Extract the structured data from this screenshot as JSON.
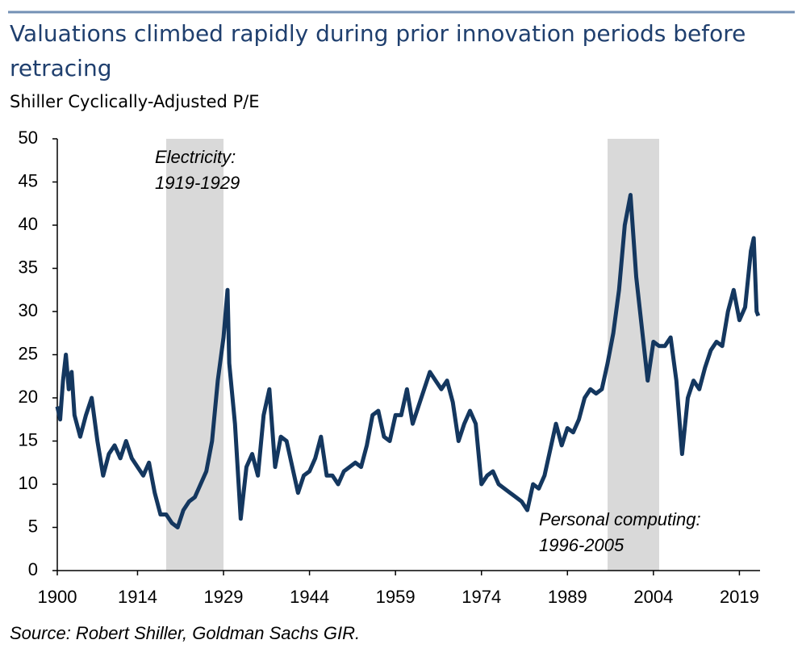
{
  "chart_data": {
    "type": "line",
    "title_lines": [
      "Valuations climbed rapidly during prior innovation periods before",
      "retracing"
    ],
    "subtitle": "Shiller Cyclically-Adjusted P/E",
    "source": "Source: Robert Shiller, Goldman Sachs GIR.",
    "shaded_periods": [
      {
        "label_lines": [
          "Electricity:",
          "1919-1929"
        ],
        "start": 1919,
        "end": 1929
      },
      {
        "label_lines": [
          "Personal computing:",
          "1996-2005"
        ],
        "start": 1996,
        "end": 2005
      }
    ],
    "x": [
      1900,
      1900.5,
      1901,
      1901.5,
      1902,
      1902.5,
      1903,
      1904,
      1905,
      1906,
      1907,
      1908,
      1909,
      1910,
      1911,
      1912,
      1913,
      1914,
      1915,
      1916,
      1917,
      1918,
      1919,
      1920,
      1921,
      1922,
      1923,
      1924,
      1925,
      1926,
      1927,
      1928,
      1929,
      1929.7,
      1930,
      1931,
      1932,
      1933,
      1934,
      1935,
      1936,
      1937,
      1938,
      1939,
      1940,
      1941,
      1942,
      1943,
      1944,
      1945,
      1946,
      1947,
      1948,
      1949,
      1950,
      1951,
      1952,
      1953,
      1954,
      1955,
      1956,
      1957,
      1958,
      1959,
      1960,
      1961,
      1962,
      1963,
      1964,
      1965,
      1966,
      1967,
      1968,
      1969,
      1970,
      1971,
      1972,
      1973,
      1974,
      1975,
      1976,
      1977,
      1978,
      1979,
      1980,
      1981,
      1982,
      1983,
      1984,
      1985,
      1986,
      1987,
      1988,
      1989,
      1990,
      1991,
      1992,
      1993,
      1994,
      1995,
      1996,
      1997,
      1998,
      1999,
      2000,
      2001,
      2002,
      2003,
      2004,
      2005,
      2006,
      2007,
      2008,
      2009,
      2010,
      2011,
      2012,
      2013,
      2014,
      2015,
      2016,
      2017,
      2018,
      2019,
      2020,
      2021,
      2021.5,
      2022,
      2022.3
    ],
    "series": [
      {
        "name": "Shiller CAPE",
        "color": "#14375f",
        "values": [
          19,
          17.5,
          22,
          25,
          21,
          23,
          18,
          15.5,
          18,
          20,
          15,
          11,
          13.5,
          14.5,
          13,
          15,
          13,
          12,
          11,
          12.5,
          9,
          6.5,
          6.5,
          5.5,
          5,
          7,
          8,
          8.5,
          10,
          11.5,
          15,
          22,
          27,
          32.5,
          24,
          17,
          6,
          12,
          13.5,
          11,
          18,
          21,
          12,
          15.5,
          15,
          12,
          9,
          11,
          11.5,
          13,
          15.5,
          11,
          11,
          10,
          11.5,
          12,
          12.5,
          12,
          14.5,
          18,
          18.5,
          15.5,
          15,
          18,
          18,
          21,
          17,
          19,
          21,
          23,
          22,
          21,
          22,
          19.5,
          15,
          17,
          18.5,
          17,
          10,
          11,
          11.5,
          10,
          9.5,
          9,
          8.5,
          8,
          7,
          10,
          9.5,
          11,
          14,
          17,
          14.5,
          16.5,
          16,
          17.5,
          20,
          21,
          20.5,
          21,
          24,
          27.5,
          32.5,
          40,
          43.5,
          34,
          28,
          22,
          26.5,
          26,
          26,
          27,
          22,
          13.5,
          20,
          22,
          21,
          23.5,
          25.5,
          26.5,
          26,
          30,
          32.5,
          29,
          30.5,
          37,
          38.5,
          30,
          29.5
        ]
      }
    ],
    "xlim": [
      1900,
      2022.6
    ],
    "xticks": [
      1900,
      1914,
      1929,
      1944,
      1959,
      1974,
      1989,
      2004,
      2019
    ],
    "ylim": [
      0,
      50
    ],
    "yticks": [
      0,
      5,
      10,
      15,
      20,
      25,
      30,
      35,
      40,
      45,
      50
    ]
  }
}
